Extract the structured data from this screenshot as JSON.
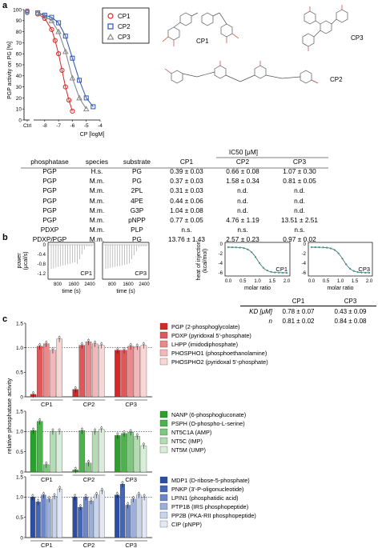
{
  "panel_labels": {
    "a": "a",
    "b": "b",
    "c": "c"
  },
  "colors": {
    "CP1": "#d62728",
    "CP2": "#2c55b3",
    "CP3": "#7f7f7f",
    "red": "#d62728",
    "green": "#2ca02c",
    "blue": "#2b4ea2"
  },
  "panel_a": {
    "structure_labels": {
      "cp1": "CP1",
      "cp2": "CP2",
      "cp3": "CP3"
    },
    "table": {
      "headers": [
        "phosphatase",
        "species",
        "substrate",
        "CP1",
        "CP2",
        "CP3"
      ],
      "group_header": "IC50 [μM]",
      "rows": [
        [
          "PGP",
          "H.s.",
          "PG",
          "0.39 ± 0.03",
          "0.66 ± 0.08",
          "1.07 ± 0.30"
        ],
        [
          "PGP",
          "M.m.",
          "PG",
          "0.37 ± 0.03",
          "1.58 ± 0.34",
          "0.81 ± 0.05"
        ],
        [
          "PGP",
          "M.m.",
          "2PL",
          "0.31 ± 0.03",
          "n.d.",
          "n.d."
        ],
        [
          "PGP",
          "M.m.",
          "4PE",
          "0.44 ± 0.06",
          "n.d.",
          "n.d."
        ],
        [
          "PGP",
          "M.m.",
          "G3P",
          "1.04 ± 0.08",
          "n.d.",
          "n.d."
        ],
        [
          "PGP",
          "M.m.",
          "pNPP",
          "0.77 ± 0.05",
          "4.76 ± 1.19",
          "13.51 ± 2.51"
        ],
        [
          "PDXP",
          "M.m.",
          "PLP",
          "n.s.",
          "n.s.",
          "n.s."
        ],
        [
          "PDXP/PGP",
          "M.m.",
          "PG",
          "13.76 ± 1.43",
          "2.57 ± 0.23",
          "0.97 ± 0.02"
        ]
      ]
    }
  },
  "panel_b": {
    "itc_ylabel": [
      "power",
      "(μcal/s)"
    ],
    "itc_xlabel": "time (s)",
    "heat_ylabel": [
      "heat of injection",
      "(kcal/mol)"
    ],
    "heat_xlabel": "molar ratio",
    "traces": [
      {
        "label": "CP1",
        "yticks": [
          "0",
          "-0.4",
          "-0.8",
          "-1.2"
        ],
        "xticks": [
          "800",
          "1600",
          "2400"
        ]
      },
      {
        "label": "CP3",
        "yticks": [
          "0",
          "-0.4",
          "-0.8",
          "-1.2"
        ],
        "xticks": [
          "800",
          "1600",
          "2400"
        ]
      }
    ],
    "isotherms": [
      {
        "label": "CP1",
        "yticks": [
          "0",
          "-2",
          "-4",
          "-6"
        ],
        "xticks": [
          "0.0",
          "0.5",
          "1.0",
          "1.5",
          "2.0"
        ]
      },
      {
        "label": "CP3",
        "yticks": [
          "0",
          "-2",
          "-4",
          "-6"
        ],
        "xticks": [
          "0.0",
          "0.5",
          "1.0",
          "1.5",
          "2.0"
        ]
      }
    ],
    "kd_table": {
      "headers": [
        "CP1",
        "CP3"
      ],
      "rows": [
        {
          "label": "KD [μM]",
          "v1": "0.78 ± 0.07",
          "v2": "0.43 ± 0.09"
        },
        {
          "label": "n",
          "v1": "0.81 ± 0.02",
          "v2": "0.84 ± 0.08"
        }
      ]
    }
  },
  "panel_c": {
    "legend_groups": [
      [
        "PGP (2-phosphoglycolate)",
        "PDXP (pyridoxal 5'-phosphate)",
        "LHPP (imidodiphosphate)",
        "PHOSPHO1 (phosphoethanolamine)",
        "PHOSPHO2 (pyridoxal 5'-phosphate)"
      ],
      [
        "NANP (6-phosphogluconate)",
        "PSPH (O-phospho-L-serine)",
        "NT5C1A (AMP)",
        "NT5C (IMP)",
        "NT5M (UMP)"
      ],
      [
        "MDP1 (D-ribose-5-phosphate)",
        "PNKP (3'-P-oligonucleotide)",
        "LPIN1 (phosphatidic acid)",
        "PTP1B (IRS phosphopeptide)",
        "PP2B (PKA-RII phosphopeptide)",
        "CIP (pNPP)"
      ]
    ]
  },
  "chart_data": [
    {
      "type": "scatter",
      "xlabel": "CP [logM]",
      "ylabel": "PGP activity on PG [%]",
      "xticks": [
        "Ctrl",
        "-8",
        "-7",
        "-6",
        "-5",
        "-4"
      ],
      "yticks": [
        0,
        10,
        20,
        30,
        40,
        50,
        60,
        70,
        80,
        90,
        100
      ],
      "ylim": [
        0,
        100
      ],
      "legend": [
        "CP1",
        "CP2",
        "CP3"
      ],
      "series": [
        {
          "name": "CP1",
          "x": [
            -8.5,
            -8,
            -7.5,
            -7.25,
            -7,
            -6.75,
            -6.5,
            -6.25,
            -6
          ],
          "y": [
            96,
            92,
            82,
            72,
            60,
            45,
            30,
            18,
            8
          ]
        },
        {
          "name": "CP2",
          "x": [
            -8.5,
            -8,
            -7.5,
            -7,
            -6.5,
            -6,
            -5.5,
            -5,
            -4.5
          ],
          "y": [
            97,
            95,
            93,
            88,
            76,
            56,
            36,
            20,
            12
          ]
        },
        {
          "name": "CP3",
          "x": [
            -8.5,
            -8,
            -7.5,
            -7,
            -6.5,
            -6,
            -5.5,
            -5
          ],
          "y": [
            97,
            94,
            90,
            80,
            62,
            38,
            20,
            10
          ]
        }
      ]
    },
    {
      "type": "bar",
      "ylabel": "relative phosphatase activity",
      "yticks": [
        "0",
        "0.5",
        "1.0",
        "1.5"
      ],
      "ylim": [
        0,
        1.5
      ],
      "categories": [
        "CP1",
        "CP2",
        "CP3"
      ],
      "groups": [
        {
          "series": [
            {
              "name": "PGP (2-phosphoglycolate)",
              "values": [
                0.05,
                0.15,
                0.95
              ]
            },
            {
              "name": "PDXP (pyridoxal 5'-phosphate)",
              "values": [
                1.03,
                1.05,
                0.95
              ]
            },
            {
              "name": "LHPP (imidodiphosphate)",
              "values": [
                1.08,
                1.12,
                1.03
              ]
            },
            {
              "name": "PHOSPHO1 (phosphoethanolamine)",
              "values": [
                0.95,
                1.08,
                1.02
              ]
            },
            {
              "name": "PHOSPHO2 (pyridoxal 5'-phosphate)",
              "values": [
                1.18,
                1.05,
                1.05
              ]
            }
          ]
        },
        {
          "series": [
            {
              "name": "NANP (6-phosphogluconate)",
              "values": [
                1.02,
                0.05,
                0.9
              ]
            },
            {
              "name": "PSPH (O-phospho-L-serine)",
              "values": [
                1.25,
                1.02,
                0.95
              ]
            },
            {
              "name": "NT5C1A (AMP)",
              "values": [
                0.18,
                0.22,
                0.98
              ]
            },
            {
              "name": "NT5C (IMP)",
              "values": [
                1.0,
                1.0,
                0.88
              ]
            },
            {
              "name": "NT5M (UMP)",
              "values": [
                1.0,
                1.05,
                0.65
              ]
            }
          ]
        },
        {
          "series": [
            {
              "name": "MDP1 (D-ribose-5-phosphate)",
              "values": [
                1.0,
                1.0,
                1.05
              ]
            },
            {
              "name": "PNKP (3'-P-oligonucleotide)",
              "values": [
                0.88,
                0.75,
                1.32
              ]
            },
            {
              "name": "LPIN1 (phosphatidic acid)",
              "values": [
                1.05,
                1.0,
                0.8
              ]
            },
            {
              "name": "PTP1B (IRS phosphopeptide)",
              "values": [
                0.95,
                0.9,
                0.95
              ]
            },
            {
              "name": "PP2B (PKA-RII phosphopeptide)",
              "values": [
                1.02,
                1.05,
                1.05
              ]
            },
            {
              "name": "CIP (pNPP)",
              "values": [
                1.2,
                1.15,
                1.0
              ]
            }
          ]
        }
      ]
    }
  ]
}
